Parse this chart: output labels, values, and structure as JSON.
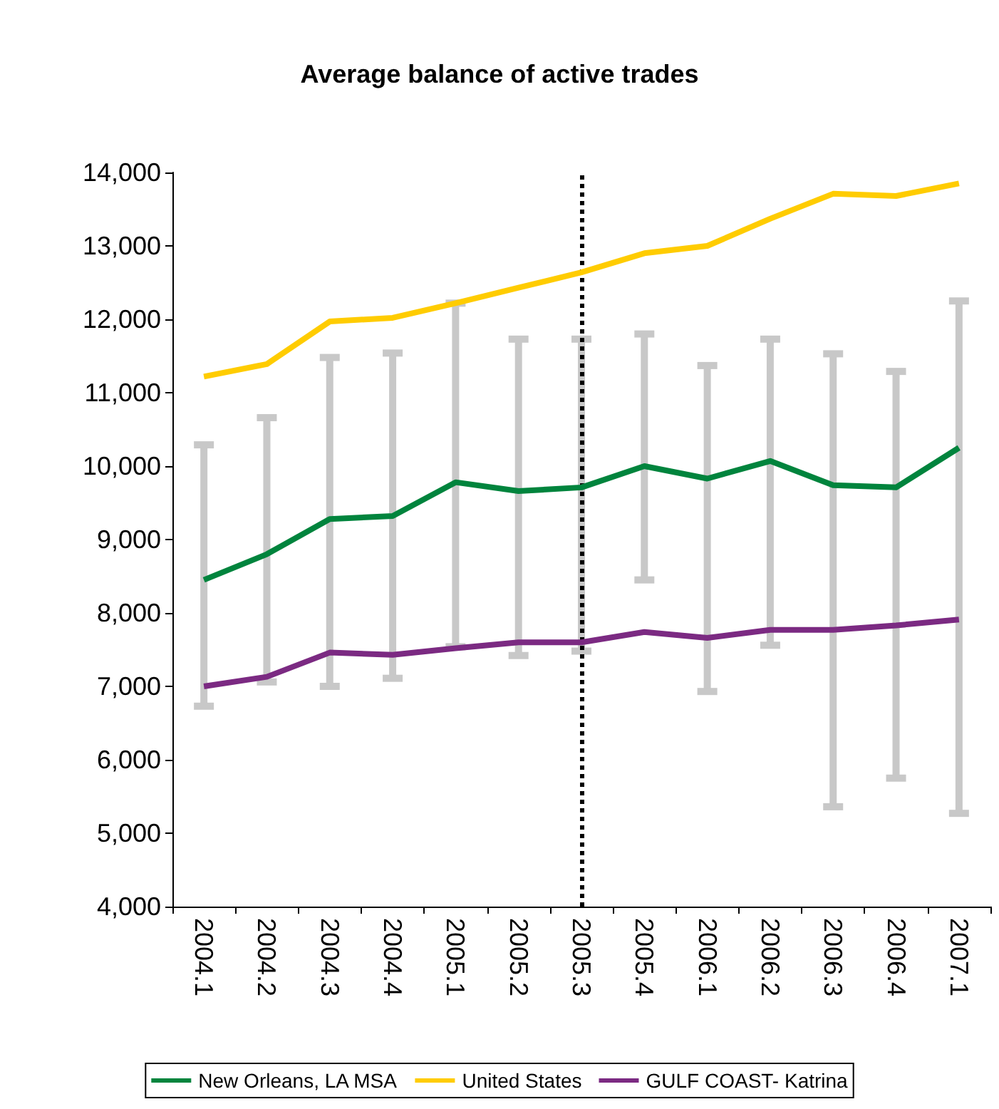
{
  "chart_data": {
    "type": "line",
    "title": "Average balance of active trades",
    "categories": [
      "2004.1",
      "2004.2",
      "2004.3",
      "2004.4",
      "2005.1",
      "2005.2",
      "2005.3",
      "2005.4",
      "2006.1",
      "2006.2",
      "2006.3",
      "2006.4",
      "2007.1"
    ],
    "series": [
      {
        "name": "New Orleans, LA MSA",
        "color": "#00843d",
        "values": [
          8450,
          8800,
          9280,
          9320,
          9780,
          9660,
          9710,
          10000,
          9830,
          10070,
          9740,
          9710,
          10250
        ],
        "errors": [
          [
            6730,
            10290
          ],
          [
            7060,
            10660
          ],
          [
            7000,
            11480
          ],
          [
            7110,
            11540
          ],
          [
            7540,
            12220
          ],
          [
            7420,
            11730
          ],
          [
            7480,
            11730
          ],
          [
            8450,
            11800
          ],
          [
            6930,
            11370
          ],
          [
            7560,
            11730
          ],
          [
            5360,
            11530
          ],
          [
            5750,
            11290
          ],
          [
            5270,
            12250
          ]
        ]
      },
      {
        "name": "United States",
        "color": "#ffcc00",
        "values": [
          11220,
          11390,
          11970,
          12020,
          12220,
          12430,
          12640,
          12900,
          13000,
          13370,
          13710,
          13680,
          13850
        ]
      },
      {
        "name": "GULF COAST- Katrina",
        "color": "#7b2a82",
        "values": [
          7000,
          7130,
          7460,
          7430,
          7520,
          7600,
          7600,
          7740,
          7660,
          7770,
          7770,
          7830,
          7910
        ]
      }
    ],
    "ylim": [
      4000,
      14000
    ],
    "yticks": [
      {
        "value": 4000,
        "label": "4,000"
      },
      {
        "value": 5000,
        "label": "5,000"
      },
      {
        "value": 6000,
        "label": "6,000"
      },
      {
        "value": 7000,
        "label": "7,000"
      },
      {
        "value": 8000,
        "label": "8,000"
      },
      {
        "value": 9000,
        "label": "9,000"
      },
      {
        "value": 10000,
        "label": "10,000"
      },
      {
        "value": 11000,
        "label": "11,000"
      },
      {
        "value": 12000,
        "label": "12,000"
      },
      {
        "value": 13000,
        "label": "13,000"
      },
      {
        "value": 14000,
        "label": "14,000"
      }
    ],
    "ref_lines": [
      {
        "axis": "x",
        "value": "2005.3",
        "color": "#000000",
        "line_style": "dotted"
      }
    ],
    "grid": false,
    "legend": "bottom",
    "marker": "none",
    "line_style": "solid"
  }
}
